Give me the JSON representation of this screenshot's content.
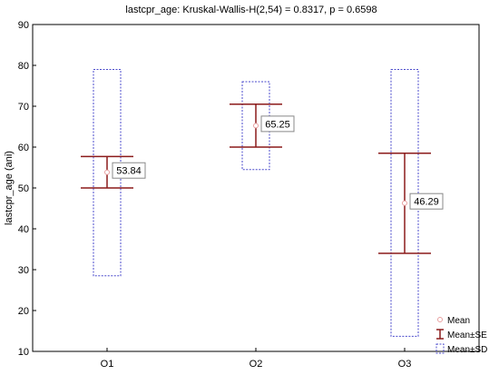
{
  "chart_data": {
    "type": "box",
    "title": "lastcpr_age:  Kruskal-Wallis-H(2,54) = 0.8317, p = 0.6598",
    "xlabel": "",
    "ylabel": "lastcpr_age (ani)",
    "ylim": [
      10,
      90
    ],
    "yticks": [
      10,
      20,
      30,
      40,
      50,
      60,
      70,
      80,
      90
    ],
    "categories": [
      "O1",
      "O2",
      "O3"
    ],
    "mean": [
      53.84,
      65.25,
      46.29
    ],
    "mean_labels": [
      "53.84",
      "65.25",
      "46.29"
    ],
    "se_low": [
      50.0,
      60.0,
      34.0
    ],
    "se_high": [
      57.7,
      70.5,
      58.5
    ],
    "sd_low": [
      28.5,
      54.5,
      13.7
    ],
    "sd_high": [
      79.0,
      76.0,
      79.0
    ],
    "grid": false,
    "legend_position": "bottom-right",
    "legend": [
      "Mean",
      "Mean±SE",
      "Mean±SD"
    ],
    "colors": {
      "se": "#8b1a1a",
      "sd": "#4a4acc",
      "mean": "#e8a0a0",
      "label_border": "#888888"
    }
  }
}
